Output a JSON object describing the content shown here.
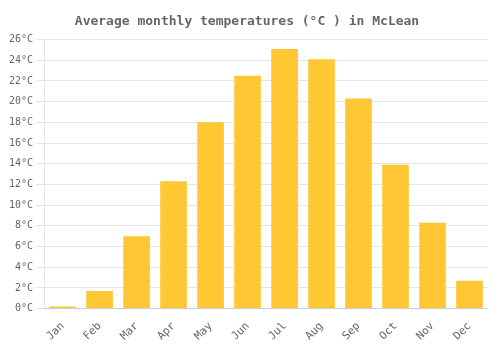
{
  "chart_data": {
    "type": "bar",
    "title": "Average monthly temperatures (°C ) in McLean",
    "categories": [
      "Jan",
      "Feb",
      "Mar",
      "Apr",
      "May",
      "Jun",
      "Jul",
      "Aug",
      "Sep",
      "Oct",
      "Nov",
      "Dec"
    ],
    "values": [
      0.2,
      1.7,
      7.0,
      12.3,
      18.0,
      22.5,
      25.1,
      24.1,
      20.3,
      13.9,
      8.3,
      2.7
    ],
    "color": "#FFC733",
    "ylim": [
      0,
      26
    ],
    "yticks": [
      {
        "value": 0,
        "label": "0°C"
      },
      {
        "value": 2,
        "label": "2°C"
      },
      {
        "value": 4,
        "label": "4°C"
      },
      {
        "value": 6,
        "label": "6°C"
      },
      {
        "value": 8,
        "label": "8°C"
      },
      {
        "value": 10,
        "label": "10°C"
      },
      {
        "value": 12,
        "label": "12°C"
      },
      {
        "value": 14,
        "label": "14°C"
      },
      {
        "value": 16,
        "label": "16°C"
      },
      {
        "value": 18,
        "label": "18°C"
      },
      {
        "value": 20,
        "label": "20°C"
      },
      {
        "value": 22,
        "label": "22°C"
      },
      {
        "value": 24,
        "label": "24°C"
      },
      {
        "value": 26,
        "label": "26°C"
      }
    ],
    "grid": true
  }
}
